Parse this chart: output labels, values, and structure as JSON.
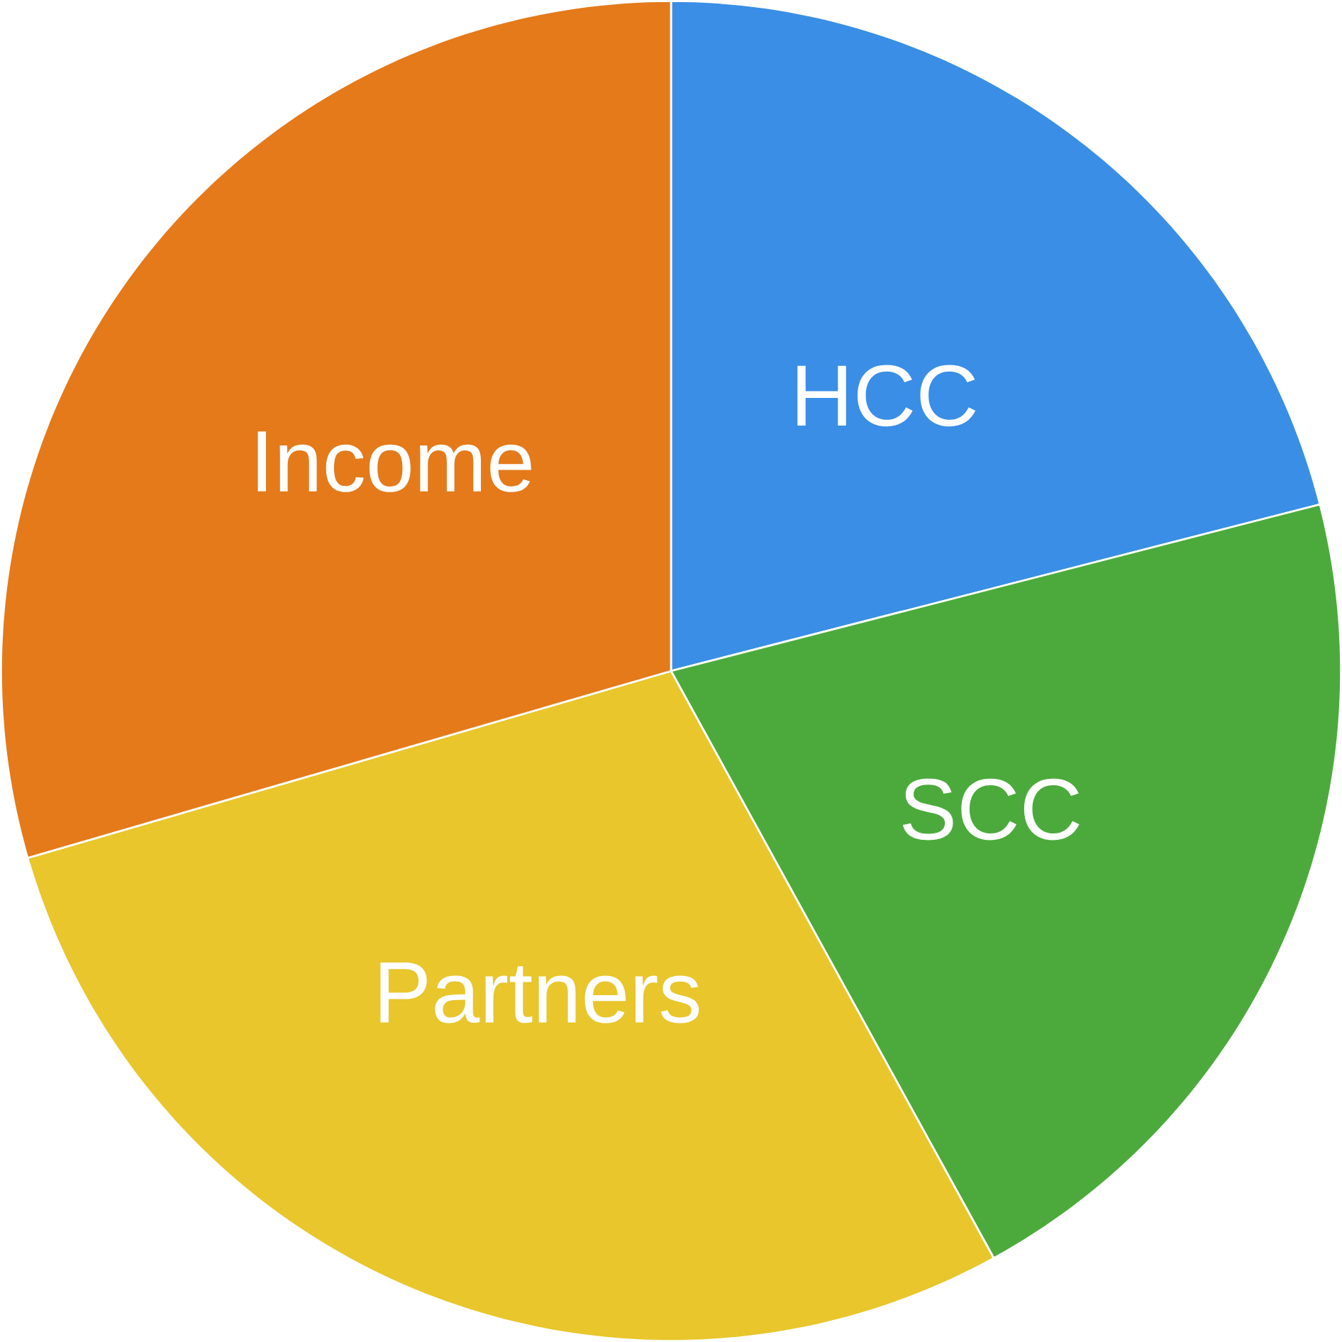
{
  "chart_data": {
    "type": "pie",
    "categories": [
      "HCC",
      "SCC",
      "Partners",
      "Income"
    ],
    "values": [
      21,
      21,
      28.5,
      29.5
    ],
    "colors": [
      "#3a8ee6",
      "#4caa3c",
      "#e8c62c",
      "#e47a1a"
    ]
  }
}
